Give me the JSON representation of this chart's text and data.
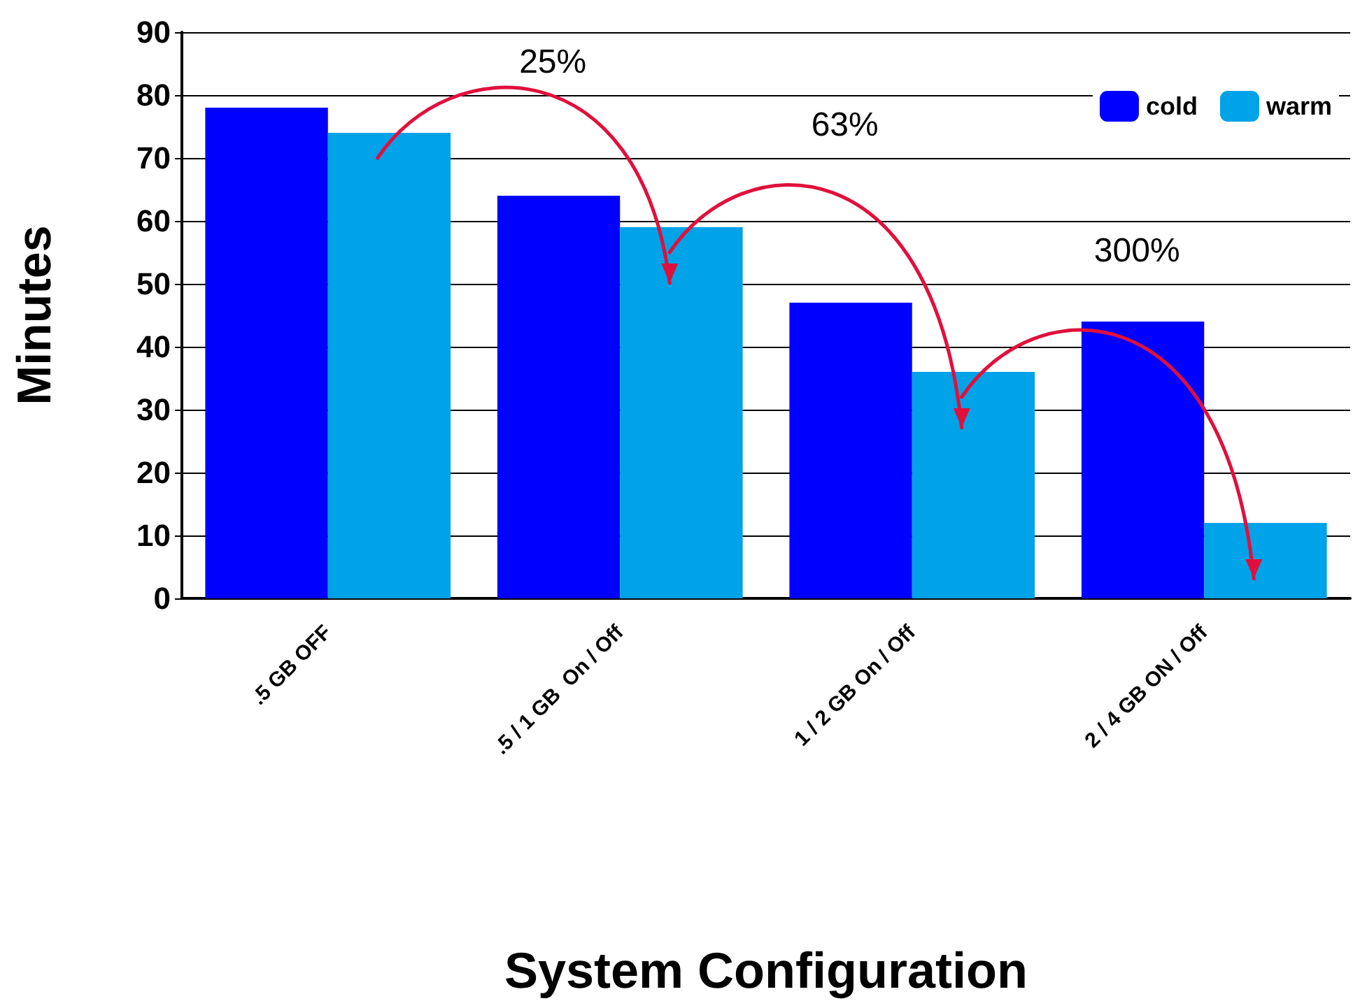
{
  "chart_data": {
    "type": "bar",
    "xlabel": "System Configuration",
    "ylabel": "Minutes",
    "categories": [
      ".5 GB OFF",
      ".5 / 1 GB  On / Off",
      "1 / 2 GB On / Off",
      "2 / 4 GB ON / Off"
    ],
    "series": [
      {
        "name": "cold",
        "color": "#0000ff",
        "values": [
          78,
          64,
          47,
          44
        ]
      },
      {
        "name": "warm",
        "color": "#00a2e8",
        "values": [
          74,
          59,
          36,
          12
        ]
      }
    ],
    "ylim": [
      0,
      90
    ],
    "yticks": [
      0,
      10,
      20,
      30,
      40,
      50,
      60,
      70,
      80,
      90
    ],
    "grid": "y",
    "legend": "top right",
    "annotations": [
      "25%",
      "63%",
      "300%"
    ]
  }
}
